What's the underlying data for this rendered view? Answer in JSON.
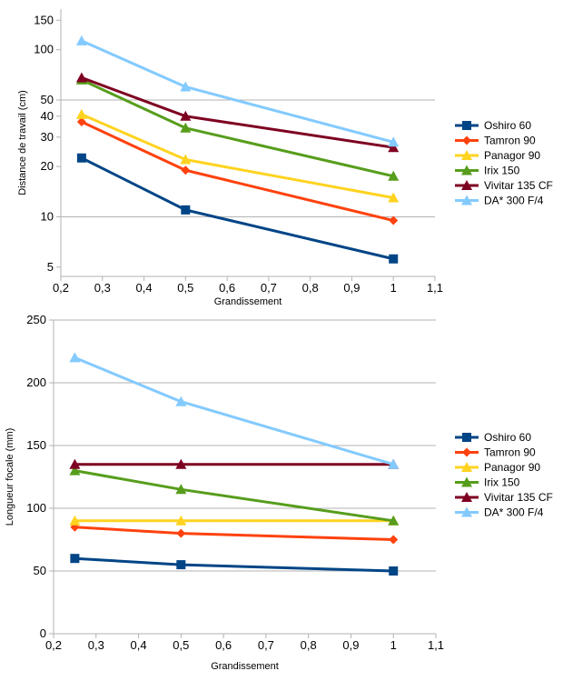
{
  "chart_data": [
    {
      "type": "line",
      "scale": "log",
      "title": "",
      "xlabel": "Grandissement",
      "ylabel": "Distance de travail (cm)",
      "xlim": [
        0.2,
        1.1
      ],
      "ylim": [
        4.4,
        175
      ],
      "x_ticks": [
        "0,2",
        "0,3",
        "0,4",
        "0,5",
        "0,6",
        "0,7",
        "0,8",
        "0,9",
        "1",
        "1,1"
      ],
      "y_ticks": [
        {
          "value": 5,
          "label": "5"
        },
        {
          "value": 10,
          "label": "10"
        },
        {
          "value": 20,
          "label": "20"
        },
        {
          "value": 30,
          "label": "30"
        },
        {
          "value": 40,
          "label": "40"
        },
        {
          "value": 50,
          "label": "50"
        },
        {
          "value": 100,
          "label": "100"
        },
        {
          "value": 150,
          "label": "150"
        }
      ],
      "y_grid": [
        10,
        50
      ],
      "legend_position": "right",
      "x": [
        0.25,
        0.5,
        1
      ],
      "series": [
        {
          "name": "Oshiro 60",
          "color": "#004586",
          "marker": "square",
          "values": [
            22.5,
            11,
            5.6
          ]
        },
        {
          "name": "Tamron 90",
          "color": "#ff420e",
          "marker": "diamond",
          "values": [
            37,
            19,
            9.5
          ]
        },
        {
          "name": "Panagor 90",
          "color": "#ffd320",
          "marker": "triangle",
          "values": [
            41,
            22,
            13
          ]
        },
        {
          "name": "Irix 150",
          "color": "#579d1c",
          "marker": "triangle",
          "values": [
            66,
            34,
            17.5
          ]
        },
        {
          "name": "Vivitar 135 CF",
          "color": "#7e0021",
          "marker": "triangle",
          "values": [
            68,
            40,
            26
          ]
        },
        {
          "name": "DA* 300 F/4",
          "color": "#83caff",
          "marker": "triangle",
          "values": [
            113,
            60,
            28
          ]
        }
      ]
    },
    {
      "type": "line",
      "scale": "linear",
      "title": "",
      "xlabel": "Grandissement",
      "ylabel": "Longueur focale (mm)",
      "xlim": [
        0.2,
        1.1
      ],
      "ylim": [
        0,
        250
      ],
      "x_ticks": [
        "0,2",
        "0,3",
        "0,4",
        "0,5",
        "0,6",
        "0,7",
        "0,8",
        "0,9",
        "1",
        "1,1"
      ],
      "y_ticks": [
        {
          "value": 0,
          "label": "0"
        },
        {
          "value": 50,
          "label": "50"
        },
        {
          "value": 100,
          "label": "100"
        },
        {
          "value": 150,
          "label": "150"
        },
        {
          "value": 200,
          "label": "200"
        },
        {
          "value": 250,
          "label": "250"
        }
      ],
      "y_grid": [
        50,
        100,
        150,
        200,
        250
      ],
      "legend_position": "right",
      "x": [
        0.25,
        0.5,
        1
      ],
      "series": [
        {
          "name": "Oshiro 60",
          "color": "#004586",
          "marker": "square",
          "values": [
            60,
            55,
            50
          ]
        },
        {
          "name": "Tamron 90",
          "color": "#ff420e",
          "marker": "diamond",
          "values": [
            85,
            80,
            75
          ]
        },
        {
          "name": "Panagor 90",
          "color": "#ffd320",
          "marker": "triangle",
          "values": [
            90,
            90,
            90
          ]
        },
        {
          "name": "Irix 150",
          "color": "#579d1c",
          "marker": "triangle",
          "values": [
            130,
            115,
            90
          ]
        },
        {
          "name": "Vivitar 135 CF",
          "color": "#7e0021",
          "marker": "triangle",
          "values": [
            135,
            135,
            135
          ]
        },
        {
          "name": "DA* 300 F/4",
          "color": "#83caff",
          "marker": "triangle",
          "values": [
            220,
            185,
            135
          ]
        }
      ]
    }
  ]
}
